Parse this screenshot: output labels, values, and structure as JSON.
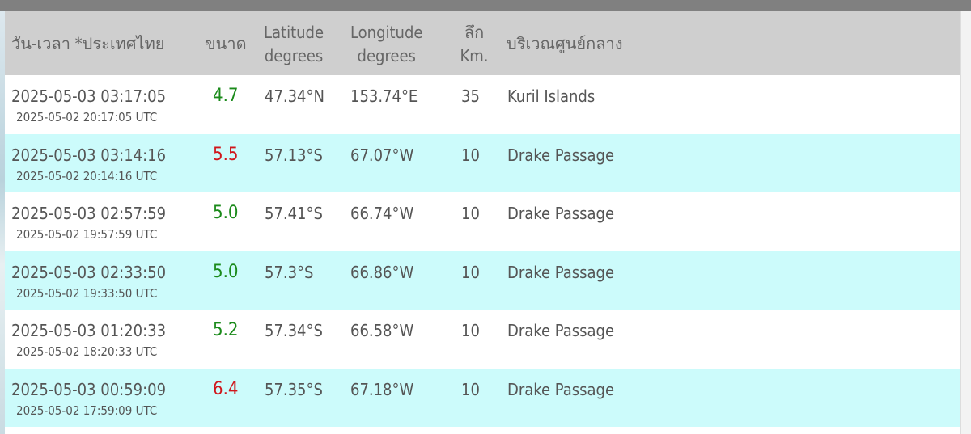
{
  "header": {
    "datetime": "วัน-เวลา *ประเทศไทย",
    "magnitude": "ขนาด",
    "latitude_1": "Latitude",
    "latitude_2": "degrees",
    "longitude_1": "Longitude",
    "longitude_2": "degrees",
    "depth_1": "ลึก",
    "depth_2": "Km.",
    "region": "บริเวณศูนย์กลาง"
  },
  "colors": {
    "mag_green": "#1a8a1a",
    "mag_red": "#d0161b",
    "alt_row": "#ccfbfb"
  },
  "rows": [
    {
      "local": "2025-05-03 03:17:05",
      "utc": "2025-05-02 20:17:05 UTC",
      "mag": "4.7",
      "mag_color": "green",
      "lat": "47.34°N",
      "lon": "153.74°E",
      "depth": "35",
      "region": "Kuril Islands"
    },
    {
      "local": "2025-05-03 03:14:16",
      "utc": "2025-05-02 20:14:16 UTC",
      "mag": "5.5",
      "mag_color": "red",
      "lat": "57.13°S",
      "lon": "67.07°W",
      "depth": "10",
      "region": "Drake Passage"
    },
    {
      "local": "2025-05-03 02:57:59",
      "utc": "2025-05-02 19:57:59 UTC",
      "mag": "5.0",
      "mag_color": "green",
      "lat": "57.41°S",
      "lon": "66.74°W",
      "depth": "10",
      "region": "Drake Passage"
    },
    {
      "local": "2025-05-03 02:33:50",
      "utc": "2025-05-02 19:33:50 UTC",
      "mag": "5.0",
      "mag_color": "green",
      "lat": "57.3°S",
      "lon": "66.86°W",
      "depth": "10",
      "region": "Drake Passage"
    },
    {
      "local": "2025-05-03 01:20:33",
      "utc": "2025-05-02 18:20:33 UTC",
      "mag": "5.2",
      "mag_color": "green",
      "lat": "57.34°S",
      "lon": "66.58°W",
      "depth": "10",
      "region": "Drake Passage"
    },
    {
      "local": "2025-05-03 00:59:09",
      "utc": "2025-05-02 17:59:09 UTC",
      "mag": "6.4",
      "mag_color": "red",
      "lat": "57.35°S",
      "lon": "67.18°W",
      "depth": "10",
      "region": "Drake Passage"
    }
  ]
}
